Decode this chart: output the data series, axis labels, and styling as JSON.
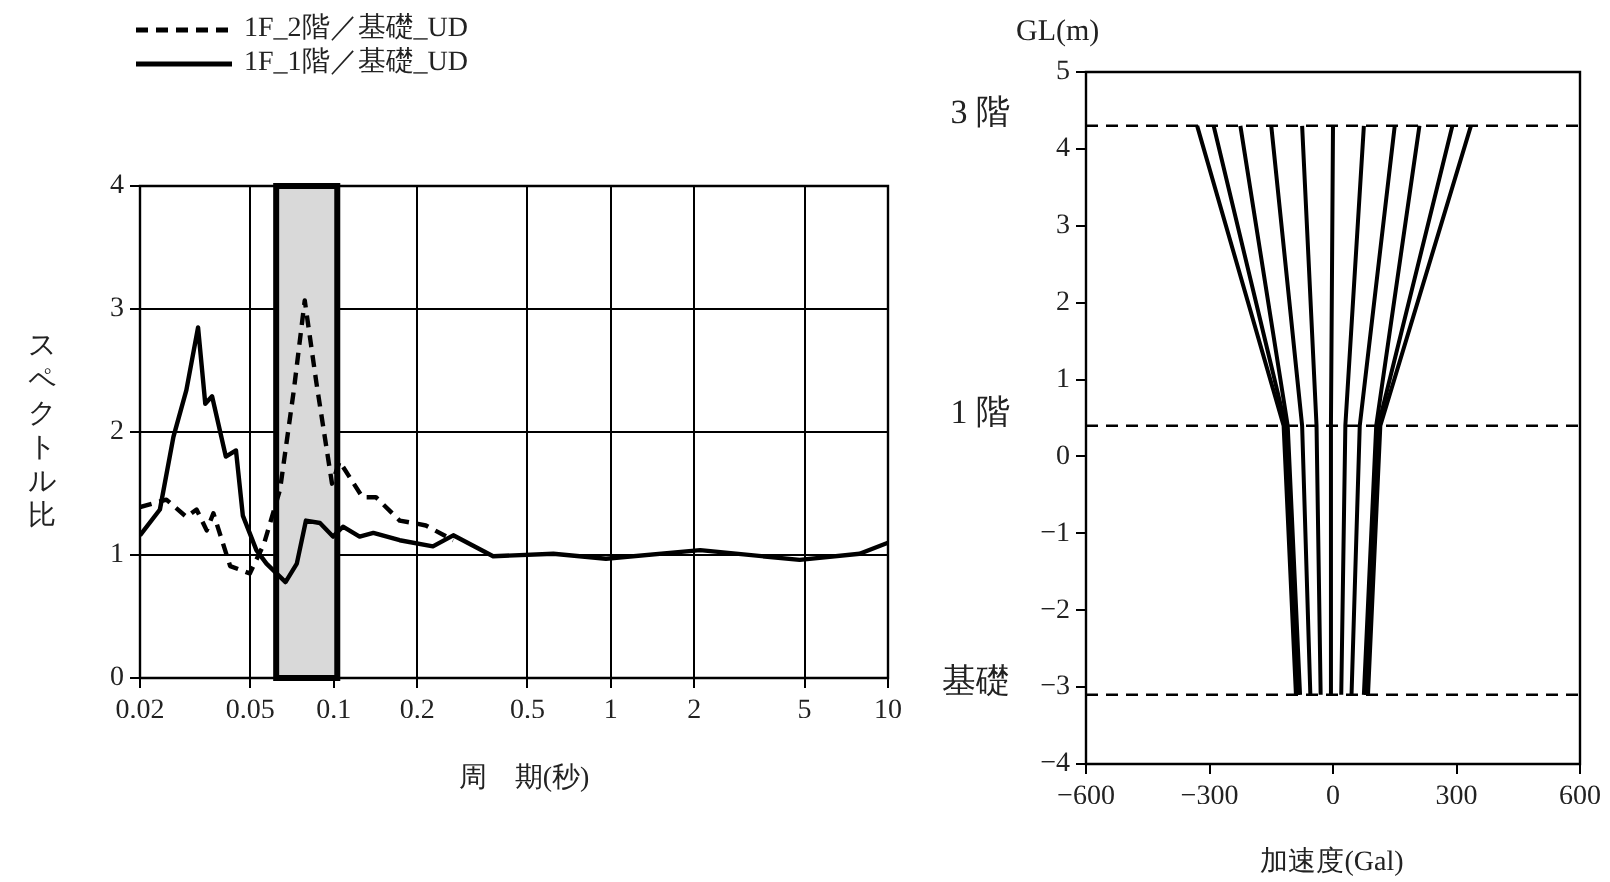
{
  "chart_data": [
    {
      "type": "line",
      "xlabel": "周　期(秒)",
      "ylabel": "スペクトル比",
      "log": "x",
      "xlim": [
        0.02,
        10
      ],
      "xticks": [
        0.02,
        0.05,
        0.1,
        0.2,
        0.5,
        1,
        2,
        5,
        10
      ],
      "ylim": [
        0,
        4
      ],
      "yticks": [
        0,
        1,
        2,
        3,
        4
      ],
      "grid": true,
      "legend": "top left",
      "marker": "none",
      "bands": [
        {
          "axis": "x",
          "from": 0.062,
          "to": 0.103,
          "color": "#d9d9d9"
        }
      ],
      "series": [
        {
          "name": "1F_2階／基礎_UD",
          "color": "#000000",
          "line_style": "dashed",
          "x": [
            0.02,
            0.0249,
            0.0294,
            0.032,
            0.0348,
            0.0368,
            0.0423,
            0.0498,
            0.056,
            0.064,
            0.0718,
            0.0786,
            0.0866,
            0.0986,
            0.105,
            0.127,
            0.142,
            0.173,
            0.194,
            0.215,
            0.27
          ],
          "values": [
            1.39,
            1.45,
            1.31,
            1.37,
            1.2,
            1.34,
            0.91,
            0.85,
            1.09,
            1.53,
            2.34,
            3.07,
            2.4,
            1.58,
            1.76,
            1.47,
            1.47,
            1.28,
            1.26,
            1.24,
            1.12
          ]
        },
        {
          "name": "1F_1階／基礎_UD",
          "color": "#000000",
          "line_style": "solid",
          "x": [
            0.02,
            0.0236,
            0.0264,
            0.0294,
            0.0324,
            0.0344,
            0.0364,
            0.0408,
            0.0444,
            0.047,
            0.0526,
            0.0572,
            0.067,
            0.0736,
            0.0794,
            0.0892,
            0.0994,
            0.108,
            0.124,
            0.139,
            0.173,
            0.228,
            0.27,
            0.376,
            0.62,
            0.96,
            2.1,
            4.8,
            7.9,
            10
          ],
          "values": [
            1.16,
            1.37,
            1.96,
            2.34,
            2.85,
            2.23,
            2.29,
            1.8,
            1.85,
            1.32,
            1.04,
            0.93,
            0.78,
            0.93,
            1.28,
            1.26,
            1.15,
            1.23,
            1.15,
            1.18,
            1.12,
            1.07,
            1.16,
            0.99,
            1.01,
            0.97,
            1.04,
            0.96,
            1.01,
            1.1
          ]
        }
      ]
    },
    {
      "type": "line",
      "xlabel": "加速度(Gal)",
      "ylabel": "GL(m)",
      "xlim": [
        -600,
        600
      ],
      "xticks": [
        {
          "value": -600,
          "label": "−600"
        },
        {
          "value": -300,
          "label": "−300"
        },
        0,
        300,
        600
      ],
      "ylim": [
        -4,
        5
      ],
      "yticks": [
        {
          "value": -4,
          "label": "−4"
        },
        {
          "value": -3,
          "label": "−3"
        },
        {
          "value": -2,
          "label": "−2"
        },
        {
          "value": -1,
          "label": "−1"
        },
        0,
        1,
        2,
        3,
        4,
        5
      ],
      "grid": false,
      "marker": "none",
      "ref_lines": [
        {
          "axis": "y",
          "value": 4.3,
          "label": "3 階",
          "color": "#000000",
          "line_style": "dashed"
        },
        {
          "axis": "y",
          "value": 0.4,
          "label": "1 階",
          "color": "#000000",
          "line_style": "dashed"
        },
        {
          "axis": "y",
          "value": -3.1,
          "label": "基礎",
          "color": "#000000",
          "line_style": "dashed"
        }
      ],
      "series": [
        {
          "color": "#000000",
          "x": [
            -90,
            -120,
            -330
          ],
          "values": [
            -3.1,
            0.4,
            4.3
          ]
        },
        {
          "color": "#000000",
          "x": [
            -85,
            -115,
            -290
          ],
          "values": [
            -3.1,
            0.4,
            4.3
          ]
        },
        {
          "color": "#000000",
          "x": [
            -80,
            -110,
            -225
          ],
          "values": [
            -3.1,
            0.4,
            4.3
          ]
        },
        {
          "color": "#000000",
          "x": [
            -55,
            -75,
            -150
          ],
          "values": [
            -3.1,
            0.4,
            4.3
          ]
        },
        {
          "color": "#000000",
          "x": [
            -30,
            -40,
            -75
          ],
          "values": [
            -3.1,
            0.4,
            4.3
          ]
        },
        {
          "color": "#000000",
          "x": [
            -5,
            -5,
            0
          ],
          "values": [
            -3.1,
            0.4,
            4.3
          ]
        },
        {
          "color": "#000000",
          "x": [
            20,
            30,
            75
          ],
          "values": [
            -3.1,
            0.4,
            4.3
          ]
        },
        {
          "color": "#000000",
          "x": [
            45,
            65,
            150
          ],
          "values": [
            -3.1,
            0.4,
            4.3
          ]
        },
        {
          "color": "#000000",
          "x": [
            75,
            105,
            210
          ],
          "values": [
            -3.1,
            0.4,
            4.3
          ]
        },
        {
          "color": "#000000",
          "x": [
            80,
            110,
            290
          ],
          "values": [
            -3.1,
            0.4,
            4.3
          ]
        },
        {
          "color": "#000000",
          "x": [
            85,
            115,
            335
          ],
          "values": [
            -3.1,
            0.4,
            4.3
          ]
        }
      ]
    }
  ]
}
